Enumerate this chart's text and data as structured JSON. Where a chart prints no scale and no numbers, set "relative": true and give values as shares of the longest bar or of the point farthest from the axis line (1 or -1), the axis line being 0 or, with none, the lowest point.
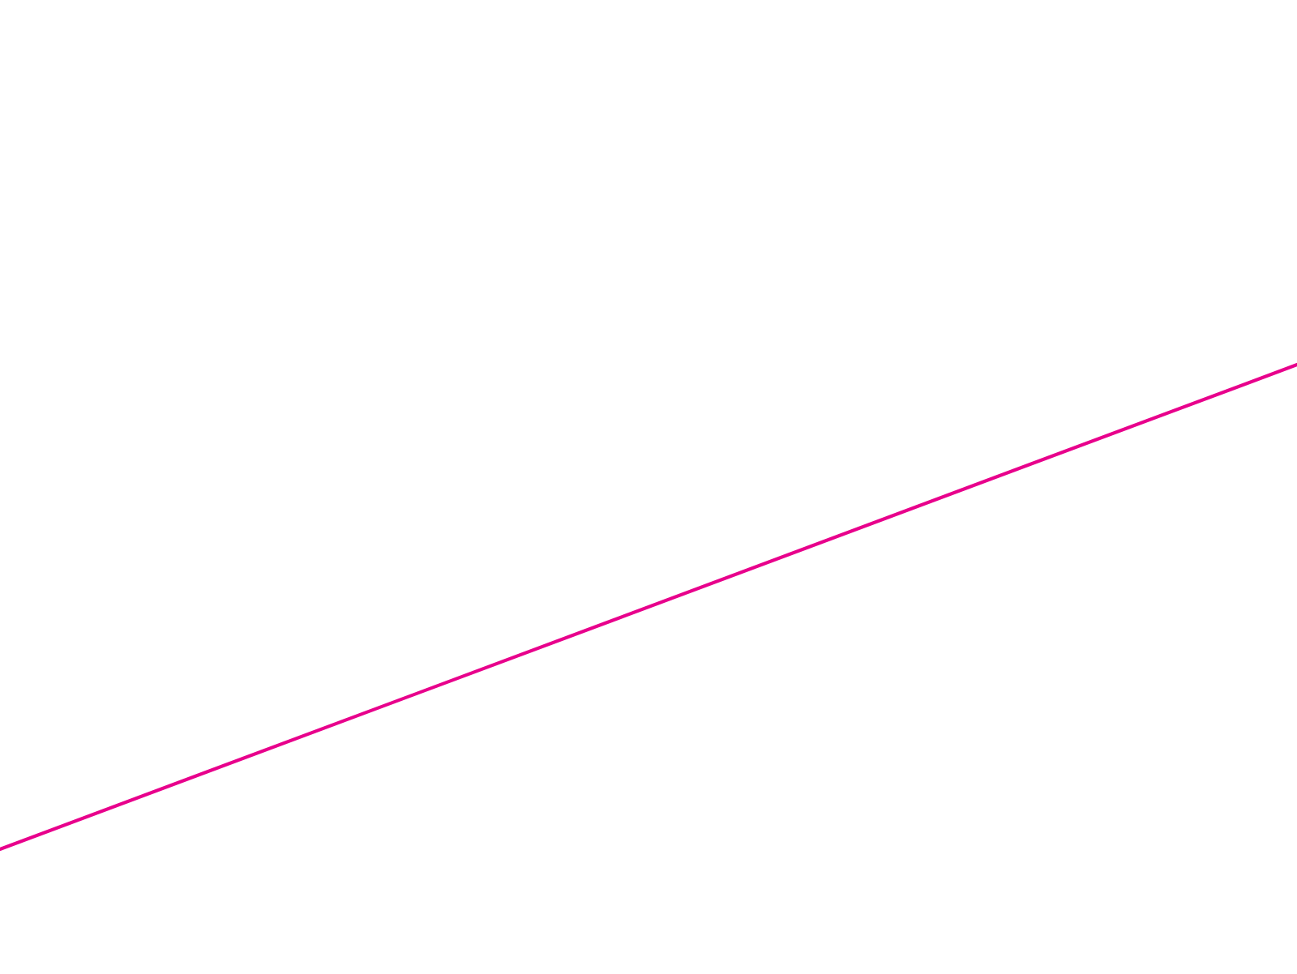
{
  "chart_data": {
    "type": "line",
    "relative": true,
    "categories": [
      null,
      null
    ],
    "series": [
      {
        "color": "#e8008c",
        "values": [
          0,
          1
        ]
      }
    ],
    "marker": "none",
    "line_style": "solid"
  }
}
